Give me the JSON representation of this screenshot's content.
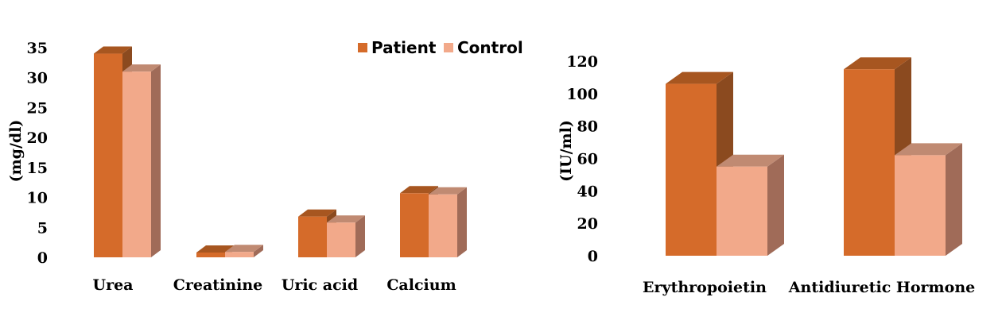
{
  "colors": {
    "patient_front": "#D56B2A",
    "patient_side": "#8B4A1F",
    "patient_top": "#A75620",
    "control_front": "#F2A98A",
    "control_side": "#A06B58",
    "control_top": "#C08A72"
  },
  "legend": {
    "items": [
      "Patient",
      "Control"
    ],
    "placement": "top-right"
  },
  "chart_data": [
    {
      "type": "bar",
      "ylabel": "(mg/dl)",
      "ylim": [
        0,
        35
      ],
      "yticks": [
        0,
        5,
        10,
        15,
        20,
        25,
        30,
        35
      ],
      "categories": [
        "Urea",
        "Creatinine",
        "Uric acid",
        "Calcium"
      ],
      "series": [
        {
          "name": "Patient",
          "values": [
            34.0,
            0.8,
            6.8,
            10.7
          ]
        },
        {
          "name": "Control",
          "values": [
            31.0,
            0.9,
            5.8,
            10.5
          ]
        }
      ],
      "grid": false
    },
    {
      "type": "bar",
      "ylabel": "(IU/ml)",
      "ylim": [
        0,
        120
      ],
      "yticks": [
        0,
        20,
        40,
        60,
        80,
        100,
        120
      ],
      "categories": [
        "Erythropoietin",
        "Antidiuretic Hormone"
      ],
      "series": [
        {
          "name": "Patient",
          "values": [
            106,
            115
          ]
        },
        {
          "name": "Control",
          "values": [
            55,
            62
          ]
        }
      ],
      "grid": false
    }
  ]
}
